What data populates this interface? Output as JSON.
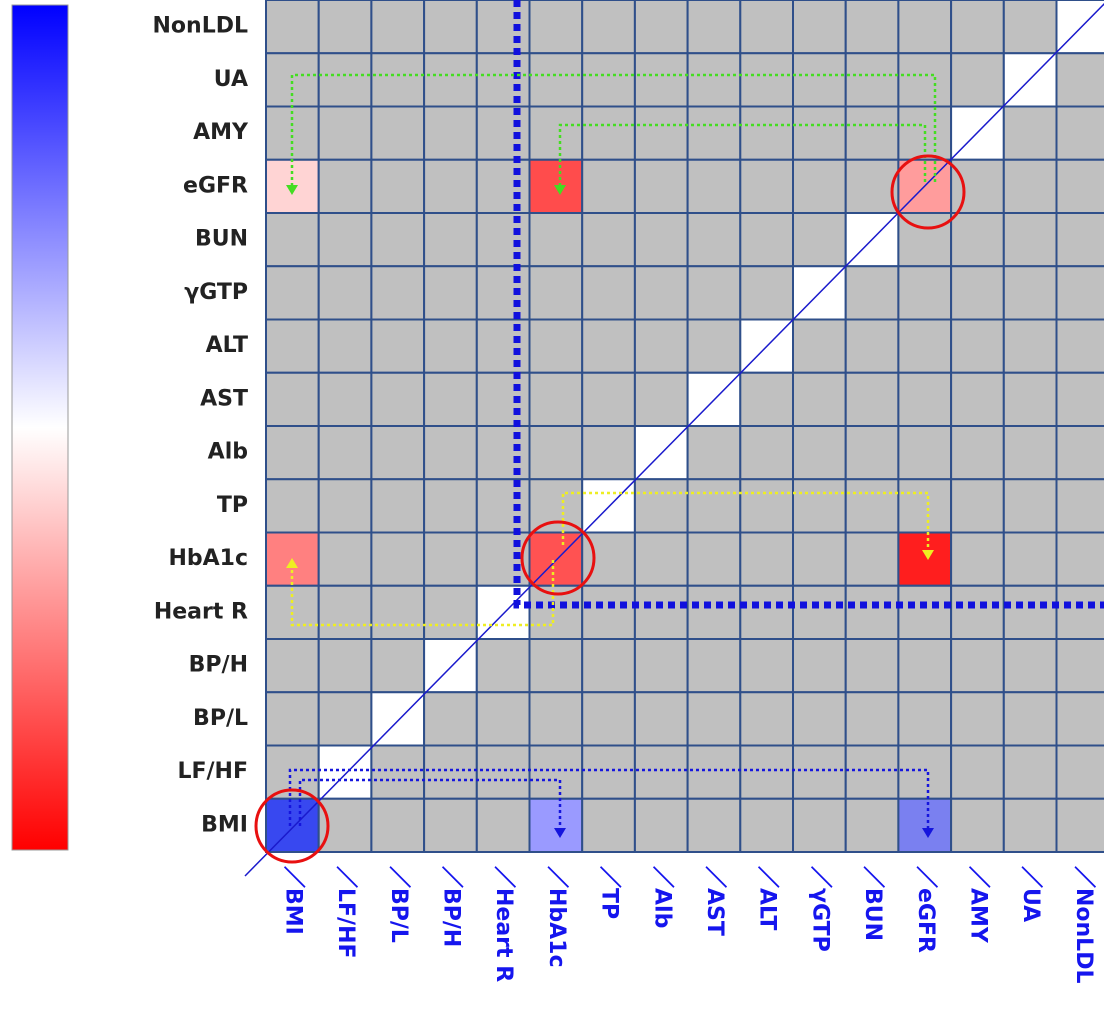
{
  "matrix": {
    "row_labels": [
      "NonLDL",
      "UA",
      "AMY",
      "eGFR",
      "BUN",
      "γGTP",
      "ALT",
      "AST",
      "Alb",
      "TP",
      "HbA1c",
      "Heart R",
      "BP/H",
      "BP/L",
      "LF/HF",
      "BMI"
    ],
    "column_labels": [
      "／BMI",
      "／LF/HF",
      "／BP/L",
      "／BP/H",
      "／Heart R",
      "／HbA1c",
      "／TP",
      "／Alb",
      "／AST",
      "／ALT",
      "／γGTP",
      "／BUN",
      "／eGFR",
      "／AMY",
      "／UA",
      "／NonLDL"
    ],
    "cell_color": "#c0c0c0",
    "diagonal_color": "#ffffff",
    "highlighted_cells": [
      {
        "row": 3,
        "column": 0,
        "color": "#ffd4d4"
      },
      {
        "row": 3,
        "column": 5,
        "color": "#ff4c4c"
      },
      {
        "row": 3,
        "column": 12,
        "color": "#ff9c9c"
      },
      {
        "row": 10,
        "column": 0,
        "color": "#ff8080"
      },
      {
        "row": 10,
        "column": 5,
        "color": "#ff5252"
      },
      {
        "row": 10,
        "column": 12,
        "color": "#ff1e1e"
      },
      {
        "row": 15,
        "column": 0,
        "color": "#3848f0"
      },
      {
        "row": 15,
        "column": 5,
        "color": "#9a9aff"
      },
      {
        "row": 15,
        "column": 12,
        "color": "#7a80f0"
      }
    ]
  }
}
